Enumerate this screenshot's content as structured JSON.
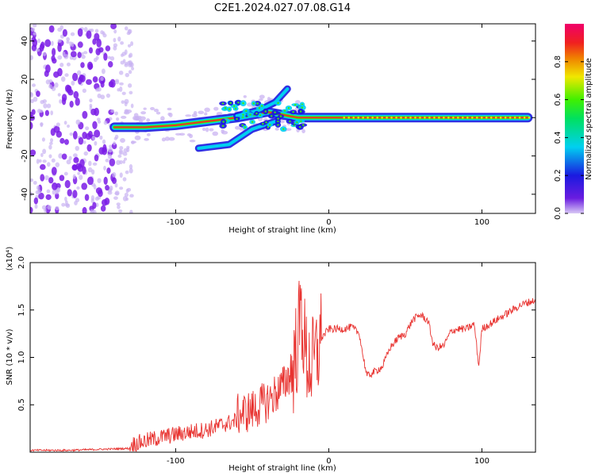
{
  "title": "C2E1.2024.027.07.08.G14",
  "colors": {
    "snr_line": "#e8322f",
    "scatter_edge": "#7a1be6",
    "scatter_fill": "#c9b3f2",
    "spectrum_core": "#e8322f"
  },
  "chart_data": [
    {
      "type": "heatmap",
      "xlabel": "Height of straight line (km)",
      "ylabel": "Frequency (Hz)",
      "xlim": [
        -195,
        135
      ],
      "ylim": [
        -50,
        49
      ],
      "xticks": [
        -100,
        0,
        100
      ],
      "yticks": [
        -40,
        -20,
        0,
        20,
        40
      ],
      "colorbar": {
        "label": "Normalized spectral amplitude",
        "range": [
          0,
          1
        ],
        "ticks": [
          "0.0",
          "0.2",
          "0.4",
          "0.6",
          "0.8"
        ],
        "colormap": "rainbow (violet → blue → cyan → green → yellow → red → magenta)"
      },
      "features": {
        "noise_region_x": [
          -195,
          -128
        ],
        "main_track": [
          {
            "x": -140,
            "y": -5
          },
          {
            "x": -120,
            "y": -5
          },
          {
            "x": -100,
            "y": -4
          },
          {
            "x": -80,
            "y": -2
          },
          {
            "x": -60,
            "y": 0
          },
          {
            "x": -40,
            "y": 3
          },
          {
            "x": -20,
            "y": 0
          },
          {
            "x": 0,
            "y": 0
          },
          {
            "x": 130,
            "y": 0
          }
        ],
        "lower_branch": [
          {
            "x": -85,
            "y": -16
          },
          {
            "x": -65,
            "y": -14
          },
          {
            "x": -50,
            "y": -6
          },
          {
            "x": -35,
            "y": -2
          }
        ],
        "upper_branch": [
          {
            "x": -60,
            "y": 1
          },
          {
            "x": -45,
            "y": 4
          },
          {
            "x": -35,
            "y": 8
          },
          {
            "x": -27,
            "y": 15
          }
        ]
      }
    },
    {
      "type": "line",
      "xlabel": "Height of straight line (km)",
      "ylabel": "SNR (10 * v/v)",
      "y_multiplier": "(x10⁴)",
      "xlim": [
        -195,
        135
      ],
      "ylim": [
        0,
        2.0
      ],
      "xticks": [
        -100,
        0,
        100
      ],
      "yticks": [
        "0.5",
        "1.0",
        "1.5",
        "2.0"
      ],
      "series": [
        {
          "x": [
            -195,
            -170,
            -150,
            -130,
            -120,
            -110,
            -100,
            -90,
            -80,
            -70,
            -60,
            -50,
            -40,
            -30,
            -25,
            -20,
            -18,
            -15,
            -10,
            -5,
            0,
            5,
            10,
            15,
            20,
            22,
            25,
            30,
            35,
            40,
            45,
            50,
            55,
            60,
            65,
            68,
            70,
            75,
            80,
            85,
            90,
            95,
            98,
            100,
            105,
            110,
            115,
            120,
            125,
            130,
            135
          ],
          "y": [
            0.02,
            0.02,
            0.03,
            0.04,
            0.08,
            0.12,
            0.15,
            0.18,
            0.2,
            0.25,
            0.3,
            0.35,
            0.45,
            0.6,
            0.75,
            1.2,
            1.5,
            1.0,
            0.9,
            1.2,
            1.3,
            1.3,
            1.3,
            1.32,
            1.25,
            1.05,
            0.8,
            0.85,
            0.9,
            1.1,
            1.2,
            1.25,
            1.4,
            1.45,
            1.38,
            1.15,
            1.1,
            1.12,
            1.28,
            1.3,
            1.3,
            1.35,
            0.9,
            1.3,
            1.35,
            1.4,
            1.45,
            1.5,
            1.55,
            1.58,
            1.6
          ]
        }
      ]
    }
  ]
}
